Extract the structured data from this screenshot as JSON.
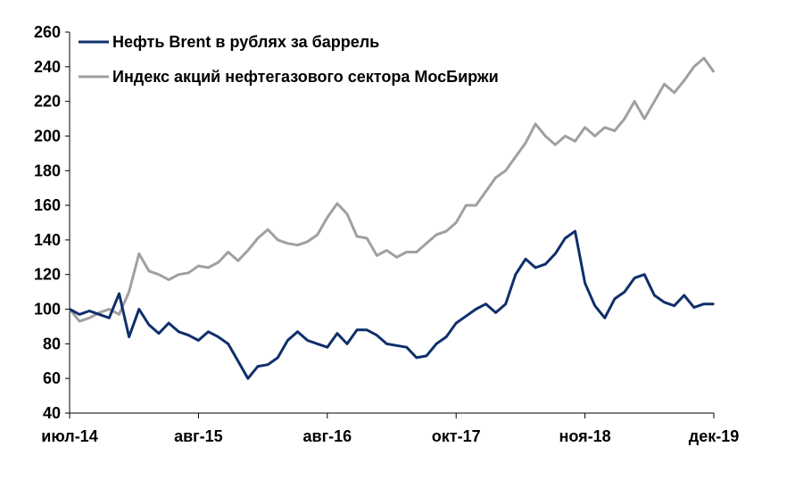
{
  "chart_data": {
    "type": "line",
    "title": "",
    "xlabel": "",
    "ylabel": "",
    "ylim": [
      40,
      260
    ],
    "y_ticks": [
      "40",
      "60",
      "80",
      "100",
      "120",
      "140",
      "160",
      "180",
      "200",
      "220",
      "240",
      "260"
    ],
    "x_ticks": [
      "июл-14",
      "авг-15",
      "авг-16",
      "окт-17",
      "ноя-18",
      "дек-19"
    ],
    "grid": false,
    "legend_position": "top-left",
    "series": [
      {
        "name": "Нефть Brent в рублях за баррель",
        "color": "#0f2f6b",
        "values": [
          [
            "2014-07",
            100
          ],
          [
            "2014-08",
            97
          ],
          [
            "2014-09",
            99
          ],
          [
            "2014-10",
            97
          ],
          [
            "2014-11",
            95
          ],
          [
            "2014-12",
            109
          ],
          [
            "2015-01",
            84
          ],
          [
            "2015-02",
            100
          ],
          [
            "2015-03",
            91
          ],
          [
            "2015-04",
            86
          ],
          [
            "2015-05",
            92
          ],
          [
            "2015-06",
            87
          ],
          [
            "2015-07",
            85
          ],
          [
            "2015-08",
            82
          ],
          [
            "2015-09",
            87
          ],
          [
            "2015-10",
            84
          ],
          [
            "2015-11",
            80
          ],
          [
            "2015-12",
            70
          ],
          [
            "2016-01",
            60
          ],
          [
            "2016-02",
            67
          ],
          [
            "2016-03",
            68
          ],
          [
            "2016-04",
            72
          ],
          [
            "2016-05",
            82
          ],
          [
            "2016-06",
            87
          ],
          [
            "2016-07",
            82
          ],
          [
            "2016-08",
            80
          ],
          [
            "2016-09",
            78
          ],
          [
            "2016-10",
            86
          ],
          [
            "2016-11",
            80
          ],
          [
            "2016-12",
            88
          ],
          [
            "2017-01",
            88
          ],
          [
            "2017-02",
            85
          ],
          [
            "2017-03",
            80
          ],
          [
            "2017-04",
            79
          ],
          [
            "2017-05",
            78
          ],
          [
            "2017-06",
            72
          ],
          [
            "2017-07",
            73
          ],
          [
            "2017-08",
            80
          ],
          [
            "2017-09",
            84
          ],
          [
            "2017-10",
            92
          ],
          [
            "2017-11",
            96
          ],
          [
            "2017-12",
            100
          ],
          [
            "2018-01",
            103
          ],
          [
            "2018-02",
            98
          ],
          [
            "2018-03",
            103
          ],
          [
            "2018-04",
            120
          ],
          [
            "2018-05",
            129
          ],
          [
            "2018-06",
            124
          ],
          [
            "2018-07",
            126
          ],
          [
            "2018-08",
            132
          ],
          [
            "2018-09",
            141
          ],
          [
            "2018-10",
            145
          ],
          [
            "2018-11",
            115
          ],
          [
            "2018-12",
            102
          ],
          [
            "2019-01",
            95
          ],
          [
            "2019-02",
            106
          ],
          [
            "2019-03",
            110
          ],
          [
            "2019-04",
            118
          ],
          [
            "2019-05",
            120
          ],
          [
            "2019-06",
            108
          ],
          [
            "2019-07",
            104
          ],
          [
            "2019-08",
            102
          ],
          [
            "2019-09",
            108
          ],
          [
            "2019-10",
            101
          ],
          [
            "2019-11",
            103
          ],
          [
            "2019-12",
            103
          ]
        ]
      },
      {
        "name": "Индекс акций нефтегазового сектора МосБиржи",
        "color": "#a0a0a0",
        "values": [
          [
            "2014-07",
            100
          ],
          [
            "2014-08",
            93
          ],
          [
            "2014-09",
            95
          ],
          [
            "2014-10",
            98
          ],
          [
            "2014-11",
            100
          ],
          [
            "2014-12",
            97
          ],
          [
            "2015-01",
            110
          ],
          [
            "2015-02",
            132
          ],
          [
            "2015-03",
            122
          ],
          [
            "2015-04",
            120
          ],
          [
            "2015-05",
            117
          ],
          [
            "2015-06",
            120
          ],
          [
            "2015-07",
            121
          ],
          [
            "2015-08",
            125
          ],
          [
            "2015-09",
            124
          ],
          [
            "2015-10",
            127
          ],
          [
            "2015-11",
            133
          ],
          [
            "2015-12",
            128
          ],
          [
            "2016-01",
            134
          ],
          [
            "2016-02",
            141
          ],
          [
            "2016-03",
            146
          ],
          [
            "2016-04",
            140
          ],
          [
            "2016-05",
            138
          ],
          [
            "2016-06",
            137
          ],
          [
            "2016-07",
            139
          ],
          [
            "2016-08",
            143
          ],
          [
            "2016-09",
            153
          ],
          [
            "2016-10",
            161
          ],
          [
            "2016-11",
            155
          ],
          [
            "2016-12",
            142
          ],
          [
            "2017-01",
            141
          ],
          [
            "2017-02",
            131
          ],
          [
            "2017-03",
            134
          ],
          [
            "2017-04",
            130
          ],
          [
            "2017-05",
            133
          ],
          [
            "2017-06",
            133
          ],
          [
            "2017-07",
            138
          ],
          [
            "2017-08",
            143
          ],
          [
            "2017-09",
            145
          ],
          [
            "2017-10",
            150
          ],
          [
            "2017-11",
            160
          ],
          [
            "2017-12",
            160
          ],
          [
            "2018-01",
            168
          ],
          [
            "2018-02",
            176
          ],
          [
            "2018-03",
            180
          ],
          [
            "2018-04",
            188
          ],
          [
            "2018-05",
            196
          ],
          [
            "2018-06",
            207
          ],
          [
            "2018-07",
            200
          ],
          [
            "2018-08",
            195
          ],
          [
            "2018-09",
            200
          ],
          [
            "2018-10",
            197
          ],
          [
            "2018-11",
            205
          ],
          [
            "2018-12",
            200
          ],
          [
            "2019-01",
            205
          ],
          [
            "2019-02",
            203
          ],
          [
            "2019-03",
            210
          ],
          [
            "2019-04",
            220
          ],
          [
            "2019-05",
            210
          ],
          [
            "2019-06",
            220
          ],
          [
            "2019-07",
            230
          ],
          [
            "2019-08",
            225
          ],
          [
            "2019-09",
            232
          ],
          [
            "2019-10",
            240
          ],
          [
            "2019-11",
            245
          ],
          [
            "2019-12",
            237
          ]
        ]
      }
    ]
  }
}
